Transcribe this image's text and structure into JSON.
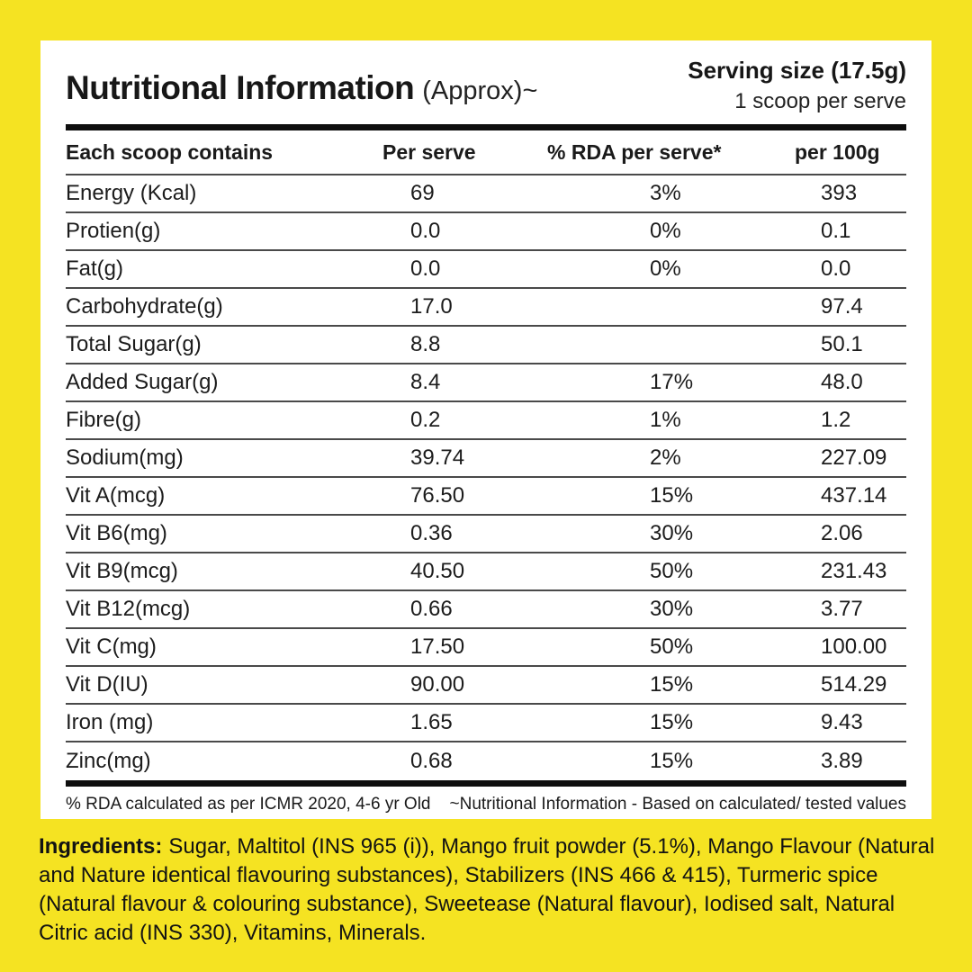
{
  "page": {
    "background": "#F5E322",
    "card_background": "#FFFFFF",
    "text_color": "#1C1C1C",
    "divider_color": "#4A4A4A",
    "bar_color": "#0E0E0E"
  },
  "header": {
    "title": "Nutritional Information",
    "title_suffix": "(Approx)~",
    "serving_size": "Serving size (17.5g)",
    "serving_note": "1 scoop per serve"
  },
  "table": {
    "columns": [
      "Each scoop contains",
      "Per serve",
      "% RDA per serve*",
      "per 100g"
    ],
    "rows": [
      {
        "name": "Energy (Kcal)",
        "per_serve": "69",
        "rda": "3%",
        "per_100g": "393"
      },
      {
        "name": "Protien(g)",
        "per_serve": "0.0",
        "rda": "0%",
        "per_100g": "0.1"
      },
      {
        "name": "Fat(g)",
        "per_serve": "0.0",
        "rda": "0%",
        "per_100g": "0.0"
      },
      {
        "name": "Carbohydrate(g)",
        "per_serve": "17.0",
        "rda": "",
        "per_100g": "97.4"
      },
      {
        "name": "Total Sugar(g)",
        "per_serve": "8.8",
        "rda": "",
        "per_100g": "50.1"
      },
      {
        "name": "Added Sugar(g)",
        "per_serve": "8.4",
        "rda": "17%",
        "per_100g": "48.0"
      },
      {
        "name": "Fibre(g)",
        "per_serve": "0.2",
        "rda": "1%",
        "per_100g": "1.2"
      },
      {
        "name": "Sodium(mg)",
        "per_serve": "39.74",
        "rda": "2%",
        "per_100g": "227.09"
      },
      {
        "name": "Vit A(mcg)",
        "per_serve": "76.50",
        "rda": "15%",
        "per_100g": "437.14"
      },
      {
        "name": "Vit B6(mg)",
        "per_serve": "0.36",
        "rda": "30%",
        "per_100g": "2.06"
      },
      {
        "name": "Vit B9(mcg)",
        "per_serve": "40.50",
        "rda": "50%",
        "per_100g": "231.43"
      },
      {
        "name": "Vit B12(mcg)",
        "per_serve": "0.66",
        "rda": "30%",
        "per_100g": "3.77"
      },
      {
        "name": "Vit C(mg)",
        "per_serve": "17.50",
        "rda": "50%",
        "per_100g": "100.00"
      },
      {
        "name": "Vit D(IU)",
        "per_serve": "90.00",
        "rda": "15%",
        "per_100g": "514.29"
      },
      {
        "name": "Iron (mg)",
        "per_serve": "1.65",
        "rda": "15%",
        "per_100g": "9.43"
      },
      {
        "name": "Zinc(mg)",
        "per_serve": "0.68",
        "rda": "15%",
        "per_100g": "3.89"
      }
    ]
  },
  "footnotes": {
    "rda_note": "% RDA calculated as per ICMR 2020, 4-6 yr Old",
    "info_note": "~Nutritional Information - Based on calculated/ tested values"
  },
  "ingredients": {
    "label": "Ingredients:",
    "text": "Sugar, Maltitol (INS 965 (i)), Mango fruit powder (5.1%), Mango Flavour (Natural and Nature identical flavouring substances), Stabilizers (INS 466 & 415), Turmeric spice (Natural flavour & colouring substance), Sweetease (Natural flavour), Iodised salt, Natural Citric acid (INS 330), Vitamins, Minerals."
  }
}
